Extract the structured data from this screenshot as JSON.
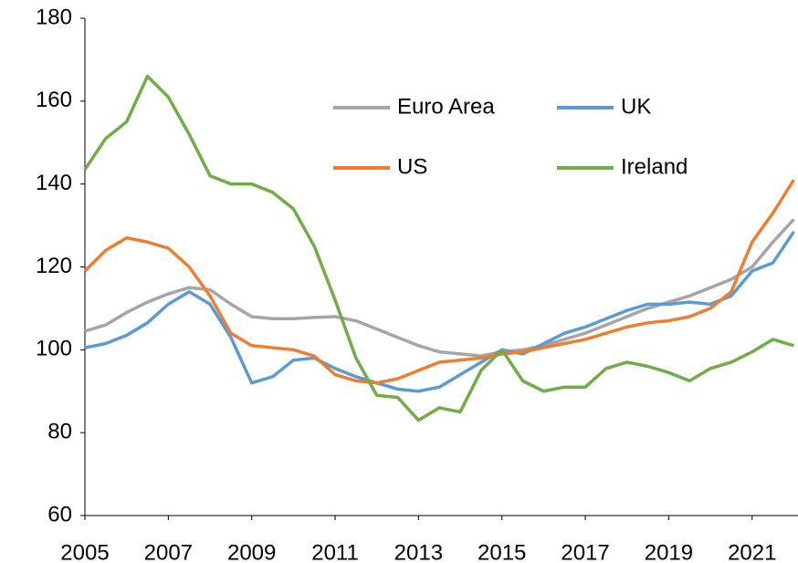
{
  "chart_data": {
    "type": "line",
    "x": [
      2005,
      2005.5,
      2006,
      2006.5,
      2007,
      2007.5,
      2008,
      2008.5,
      2009,
      2009.5,
      2010,
      2010.5,
      2011,
      2011.5,
      2012,
      2012.5,
      2013,
      2013.5,
      2014,
      2014.5,
      2015,
      2015.5,
      2016,
      2016.5,
      2017,
      2017.5,
      2018,
      2018.5,
      2019,
      2019.5,
      2020,
      2020.5,
      2021,
      2021.5,
      2022
    ],
    "series": [
      {
        "name": "Euro Area",
        "color": "#a5a5a5",
        "values": [
          104.5,
          106,
          109,
          111.5,
          113.5,
          115,
          114.5,
          111,
          108,
          107.5,
          107.5,
          107.8,
          108,
          107,
          105,
          103,
          101,
          99.5,
          99,
          98.5,
          99.5,
          100,
          101,
          102.5,
          104,
          106,
          108,
          110,
          111.5,
          113,
          115,
          117,
          120,
          126,
          131.5
        ]
      },
      {
        "name": "UK",
        "color": "#5b9bd5",
        "values": [
          100.5,
          101.5,
          103.5,
          106.5,
          111,
          114,
          111,
          103,
          92,
          93.5,
          97.5,
          98,
          95.5,
          93.5,
          92,
          90.5,
          90,
          91,
          94,
          97,
          100,
          99,
          101.5,
          104,
          105.5,
          107.5,
          109.5,
          111,
          111,
          111.5,
          111,
          113,
          119,
          121,
          128.5
        ]
      },
      {
        "name": "US",
        "color": "#ed7d31",
        "values": [
          119,
          124,
          127,
          126,
          124.5,
          120,
          113,
          104,
          101,
          100.5,
          100,
          98.5,
          94,
          92.5,
          92,
          93,
          95,
          97,
          97.5,
          98,
          99,
          99.5,
          100.5,
          101.5,
          102.5,
          104,
          105.5,
          106.5,
          107,
          108,
          110,
          114,
          126,
          133,
          141
        ]
      },
      {
        "name": "Ireland",
        "color": "#70ad47",
        "values": [
          143.5,
          151,
          155,
          166,
          161,
          152,
          142,
          140,
          140,
          138,
          134,
          125,
          112,
          98,
          89,
          88.5,
          83,
          86,
          85,
          95,
          100,
          92.5,
          90,
          91,
          91,
          95.5,
          97,
          96,
          94.5,
          92.5,
          95.5,
          97,
          99.5,
          102.5,
          101
        ]
      }
    ],
    "xlim": [
      2005,
      2022.1
    ],
    "xticks": [
      2005,
      2007,
      2009,
      2011,
      2013,
      2015,
      2017,
      2019,
      2021
    ],
    "ylim": [
      60,
      180
    ],
    "yticks": [
      60,
      80,
      100,
      120,
      140,
      160,
      180
    ]
  }
}
